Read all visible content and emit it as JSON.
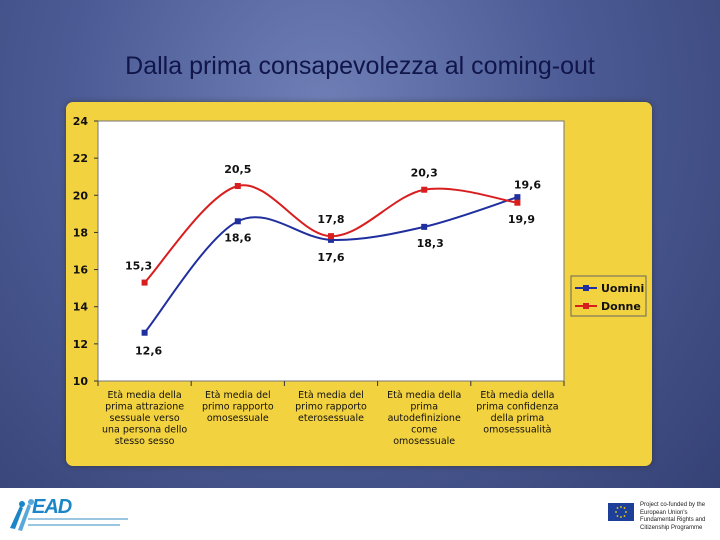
{
  "title": "Dalla prima consapevolezza al coming-out",
  "colors": {
    "uomini": "#1f2f9e",
    "donne": "#d81e1e",
    "panel": "#f3d23f",
    "plot": "#ffffff"
  },
  "chart_data": {
    "type": "line",
    "title": "",
    "xlabel": "",
    "ylabel": "",
    "categories": [
      [
        "Età media della",
        "prima attrazione",
        "sessuale verso",
        "una persona dello",
        "stesso sesso"
      ],
      [
        "Età media del",
        "primo rapporto",
        "omosessuale"
      ],
      [
        "Età media del",
        "primo rapporto",
        "eterosessuale"
      ],
      [
        "Età media della",
        "prima",
        "autodefinizione",
        "come",
        "omosessuale"
      ],
      [
        "Età media della",
        "prima confidenza",
        "della prima",
        "omosessualità"
      ]
    ],
    "ylim": [
      10,
      24
    ],
    "yticks": [
      "10",
      "12",
      "14",
      "16",
      "18",
      "20",
      "22",
      "24"
    ],
    "grid": false,
    "legend_position": "right",
    "series": [
      {
        "name": "Uomini",
        "values": [
          12.6,
          18.6,
          17.6,
          18.3,
          19.9
        ],
        "labels": [
          "12,6",
          "18,6",
          "17,6",
          "18,3",
          "19,9"
        ]
      },
      {
        "name": "Donne",
        "values": [
          15.3,
          20.5,
          17.8,
          20.3,
          19.6
        ],
        "labels": [
          "15,3",
          "20,5",
          "17,8",
          "20,3",
          "19,6"
        ]
      }
    ]
  },
  "footer": {
    "logo_text": "EAD",
    "funded_text": "Project co-funded by the European Union's Fundamental Rights and Citizenship Programme"
  }
}
